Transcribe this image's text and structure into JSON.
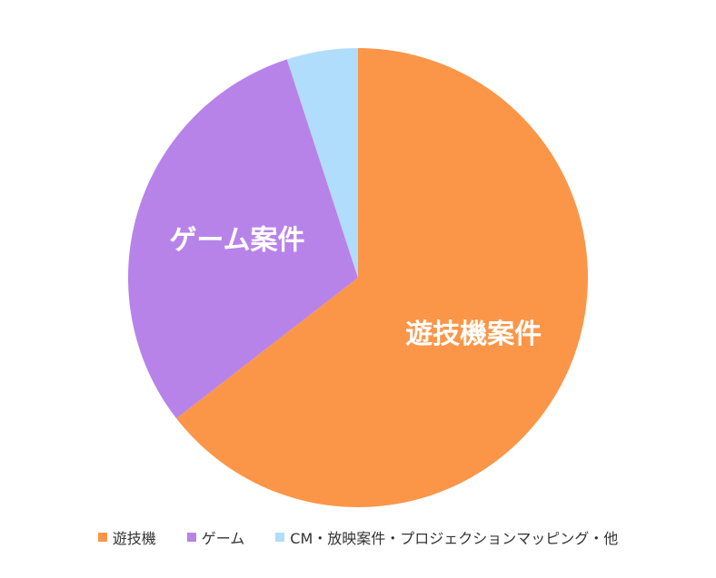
{
  "chart_data": {
    "type": "pie",
    "title": "",
    "start_angle_deg": 0,
    "direction": "clockwise",
    "legend_position": "bottom",
    "slices": [
      {
        "name": "遊技機",
        "label": "遊技機案件",
        "value": 64.5,
        "color": "#FB9649"
      },
      {
        "name": "ゲーム",
        "label": "ゲーム案件",
        "value": 30.5,
        "color": "#B783E9"
      },
      {
        "name": "CM・放映案件・プロジェクションマッピング・他",
        "label": "",
        "value": 5.0,
        "color": "#B1DDFD"
      }
    ]
  }
}
